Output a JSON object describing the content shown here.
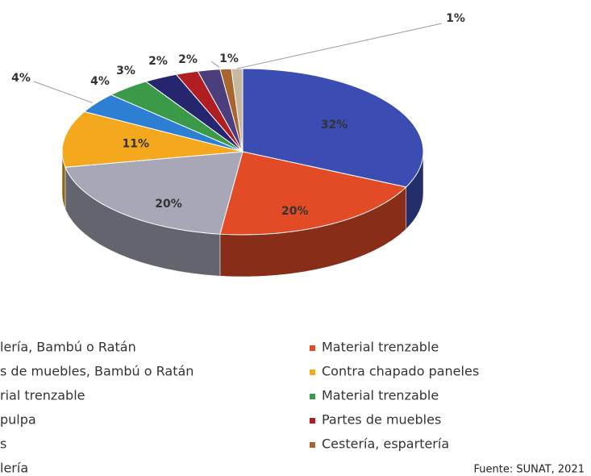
{
  "chart_data": {
    "type": "pie3d",
    "categories": [
      "lería, Bambú o Ratán",
      "Material trenzable",
      "s de muebles, Bambú o Ratán",
      "Contra chapado paneles",
      "rial trenzable",
      "Material trenzable",
      "pulpa",
      "Partes de muebles",
      "s",
      "Cestería, espartería",
      "lería"
    ],
    "values": [
      32,
      20,
      20,
      11,
      4,
      4,
      3,
      2,
      2,
      1,
      1
    ],
    "value_labels": [
      "32%",
      "20%",
      "20%",
      "11%",
      "4%",
      "4%",
      "3%",
      "2%",
      "2%",
      "1%",
      "1%"
    ],
    "colors": [
      "#3b4db3",
      "#e24b26",
      "#a7a7b7",
      "#f4a81d",
      "#2c7fd2",
      "#3b9a47",
      "#25266e",
      "#b01e22",
      "#4c3d7c",
      "#a9652f",
      "#c9b8a0"
    ],
    "source": "Fuente: SUNAT, 2021"
  }
}
